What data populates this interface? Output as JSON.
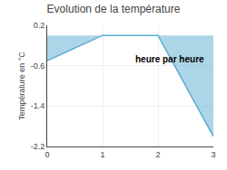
{
  "chart_data": {
    "type": "area",
    "title": "Evolution de la température",
    "ylabel": "Température en °C",
    "annotation": "heure par heure",
    "x": [
      0,
      1,
      2,
      3
    ],
    "values": [
      -0.5,
      0.0,
      0.0,
      -2.0
    ],
    "color": "#5aaccf",
    "xlim": [
      0,
      3
    ],
    "xticks": [
      0,
      1,
      2,
      3
    ],
    "ylim": [
      -2.2,
      0.2
    ],
    "yticks": [
      0.2,
      -0.6,
      -1.4,
      -2.2
    ],
    "grid": true
  }
}
